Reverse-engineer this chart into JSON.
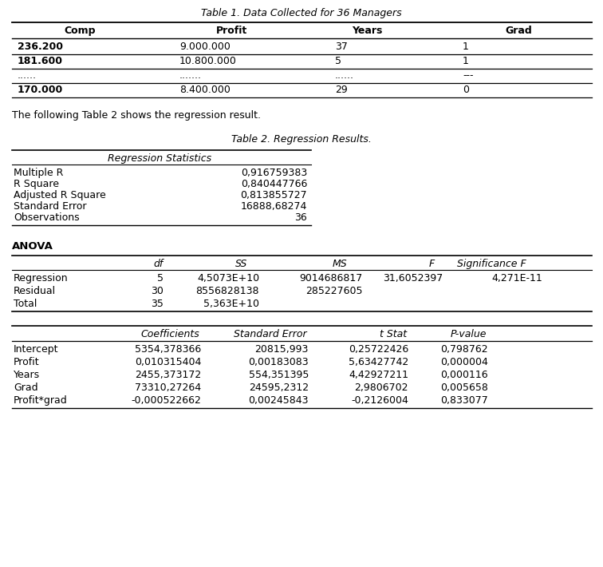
{
  "title1": "Table 1. Data Collected for 36 Managers",
  "table1_headers": [
    "Comp",
    "Profit",
    "Years",
    "Grad"
  ],
  "table1_rows": [
    [
      "236.200",
      "9.000.000",
      "37",
      "1"
    ],
    [
      "181.600",
      "10.800.000",
      "5",
      "1"
    ],
    [
      "......",
      ".......",
      "......",
      "---"
    ],
    [
      "170.000",
      "8.400.000",
      "29",
      "0"
    ]
  ],
  "middle_text": "The following Table 2 shows the regression result.",
  "title2": "Table 2. Regression Results.",
  "reg_stats_header": "Regression Statistics",
  "reg_stats_rows": [
    [
      "Multiple R",
      "0,916759383"
    ],
    [
      "R Square",
      "0,840447766"
    ],
    [
      "Adjusted R Square",
      "0,813855727"
    ],
    [
      "Standard Error",
      "16888,68274"
    ],
    [
      "Observations",
      "36"
    ]
  ],
  "anova_header": "ANOVA",
  "anova_col_headers": [
    "df",
    "SS",
    "MS",
    "F",
    "Significance F"
  ],
  "anova_rows": [
    [
      "Regression",
      "5",
      "4,5073E+10",
      "9014686817",
      "31,6052397",
      "4,271E-11"
    ],
    [
      "Residual",
      "30",
      "8556828138",
      "285227605",
      "",
      ""
    ],
    [
      "Total",
      "35",
      "5,363E+10",
      "",
      "",
      ""
    ]
  ],
  "coeff_col_headers": [
    "Coefficients",
    "Standard Error",
    "t Stat",
    "P-value"
  ],
  "coeff_rows": [
    [
      "Intercept",
      "5354,378366",
      "20815,993",
      "0,25722426",
      "0,798762"
    ],
    [
      "Profit",
      "0,010315404",
      "0,00183083",
      "5,63427742",
      "0,000004"
    ],
    [
      "Years",
      "2455,373172",
      "554,351395",
      "4,42927211",
      "0,000116"
    ],
    [
      "Grad",
      "73310,27264",
      "24595,2312",
      "2,9806702",
      "0,005658"
    ],
    [
      "Profit*grad",
      "-0,000522662",
      "0,00245843",
      "-0,2126004",
      "0,833077"
    ]
  ],
  "bg_color": "#ffffff",
  "text_color": "#000000"
}
